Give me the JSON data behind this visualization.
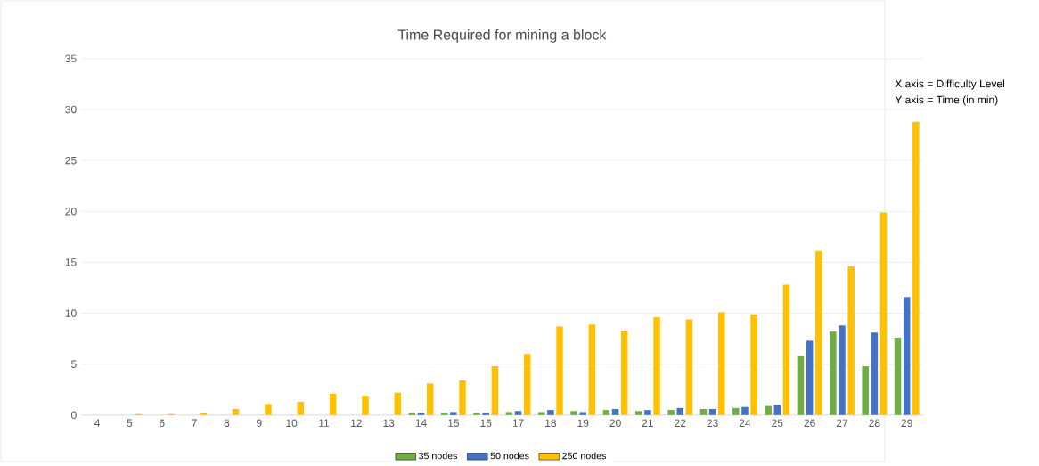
{
  "chart_data": {
    "type": "bar",
    "title": "Time Required for mining a block",
    "categories": [
      "4",
      "5",
      "6",
      "7",
      "8",
      "9",
      "10",
      "11",
      "12",
      "13",
      "14",
      "15",
      "16",
      "17",
      "18",
      "19",
      "20",
      "21",
      "22",
      "23",
      "24",
      "25",
      "26",
      "27",
      "28",
      "29"
    ],
    "series": [
      {
        "name": "35 nodes",
        "color": "#70ad47",
        "values": [
          0,
          0,
          0,
          0,
          0,
          0,
          0,
          0,
          0,
          0,
          0.2,
          0.2,
          0.2,
          0.3,
          0.3,
          0.4,
          0.5,
          0.4,
          0.5,
          0.6,
          0.7,
          0.9,
          5.8,
          8.2,
          4.8,
          7.6
        ]
      },
      {
        "name": "50 nodes",
        "color": "#4472c4",
        "values": [
          0,
          0,
          0,
          0,
          0,
          0,
          0,
          0,
          0,
          0,
          0.2,
          0.3,
          0.2,
          0.4,
          0.5,
          0.3,
          0.6,
          0.5,
          0.7,
          0.6,
          0.8,
          1.0,
          7.3,
          8.8,
          8.1,
          11.6
        ]
      },
      {
        "name": "250 nodes",
        "color": "#ffc000",
        "values": [
          0,
          0.1,
          0.1,
          0.2,
          0.6,
          1.1,
          1.3,
          2.1,
          1.9,
          2.2,
          3.1,
          3.4,
          4.8,
          6.0,
          8.7,
          8.9,
          8.3,
          9.6,
          9.4,
          10.1,
          9.9,
          12.8,
          16.1,
          14.6,
          19.9,
          28.8
        ]
      }
    ],
    "ylim": [
      0,
      35
    ],
    "yticks": [
      0,
      5,
      10,
      15,
      20,
      25,
      30,
      35
    ],
    "grid": "y",
    "legend": "bottom",
    "annotations": [
      "X axis = Difficulty Level",
      "Y axis = Time (in min)"
    ]
  }
}
